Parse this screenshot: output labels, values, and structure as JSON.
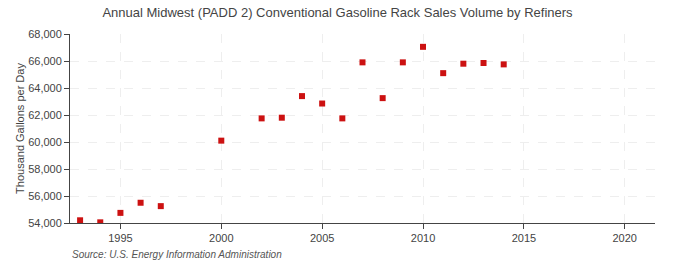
{
  "chart_data": {
    "type": "scatter",
    "title": "Annual Midwest (PADD 2) Conventional Gasoline Rack Sales Volume by Refiners",
    "ylabel": "Thousand Gallons per Day",
    "annotations": [
      "Source: U.S. Energy Information Administration"
    ],
    "x": [
      1993,
      1994,
      1995,
      1996,
      1997,
      2000,
      2002,
      2003,
      2004,
      2005,
      2006,
      2007,
      2008,
      2009,
      2010,
      2011,
      2012,
      2013,
      2014
    ],
    "values": [
      54200,
      54050,
      54750,
      55500,
      55250,
      60100,
      61750,
      61800,
      63400,
      62850,
      61750,
      65900,
      63250,
      65900,
      67050,
      65100,
      65800,
      65850,
      65750
    ],
    "color": "#cc1111",
    "marker": "square",
    "xlim": [
      1992.5,
      2021.5
    ],
    "xticks": [
      1995,
      2000,
      2005,
      2010,
      2015,
      2020
    ],
    "ylim": [
      54000,
      68000
    ],
    "yticks": [
      {
        "value": 54000,
        "label": "54,000"
      },
      {
        "value": 56000,
        "label": "56,000"
      },
      {
        "value": 58000,
        "label": "58,000"
      },
      {
        "value": 60000,
        "label": "60,000"
      },
      {
        "value": 62000,
        "label": "62,000"
      },
      {
        "value": 64000,
        "label": "64,000"
      },
      {
        "value": 66000,
        "label": "66,000"
      },
      {
        "value": 68000,
        "label": "68,000"
      }
    ],
    "grid": true
  }
}
